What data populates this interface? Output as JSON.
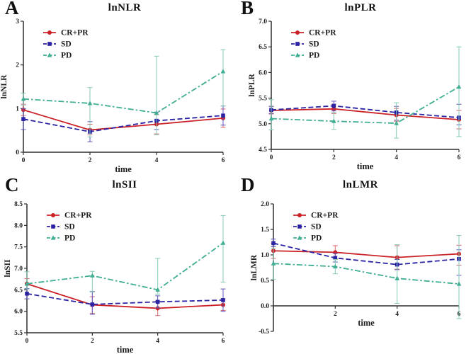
{
  "figure": {
    "background": "#ffffff",
    "axis_color": "#2e2e2e"
  },
  "chart_data": [
    {
      "panel_letter": "A",
      "type": "line",
      "title": "lnNLR",
      "xlabel": "time",
      "ylabel": "lnNLR",
      "xlim": [
        0,
        6
      ],
      "ylim": [
        0,
        3
      ],
      "xticks": [
        0,
        2,
        4,
        6
      ],
      "xtick_labels": [
        "0",
        "2",
        "4",
        "6"
      ],
      "yticks": [
        0,
        1,
        2,
        3
      ],
      "ytick_labels": [
        "0",
        "1",
        "2",
        "3"
      ],
      "xaxis_at": 0,
      "legend_position": "top-left",
      "grid": false,
      "x": [
        0,
        2,
        4,
        6
      ],
      "series": [
        {
          "name": "CR+PR",
          "color": "#cb2127",
          "error_color": "#d9666a",
          "line_style": "solid",
          "marker": "circle",
          "values": [
            0.97,
            0.51,
            0.64,
            0.78
          ],
          "err_lo": [
            0.84,
            0.4,
            0.42,
            0.57
          ],
          "err_hi": [
            1.1,
            0.64,
            0.86,
            0.99
          ]
        },
        {
          "name": "SD",
          "color": "#2a23a4",
          "error_color": "#5d57b8",
          "line_style": "dashed",
          "marker": "square",
          "values": [
            0.76,
            0.47,
            0.72,
            0.84
          ],
          "err_lo": [
            0.52,
            0.24,
            0.52,
            0.62
          ],
          "err_hi": [
            1.0,
            0.7,
            0.92,
            1.06
          ]
        },
        {
          "name": "PD",
          "color": "#3fae92",
          "error_color": "#85cab8",
          "line_style": "dashdot",
          "marker": "triangle",
          "values": [
            1.22,
            1.12,
            0.9,
            1.85
          ],
          "err_lo": [
            1.08,
            0.35,
            0.4,
            1.06
          ],
          "err_hi": [
            1.35,
            1.48,
            2.2,
            2.35
          ]
        }
      ]
    },
    {
      "panel_letter": "B",
      "type": "line",
      "title": "lnPLR",
      "xlabel": "time",
      "ylabel": "lnPLR",
      "xlim": [
        0,
        6
      ],
      "ylim": [
        4.5,
        7.0
      ],
      "xticks": [
        0,
        2,
        4,
        6
      ],
      "xtick_labels": [
        "0",
        "2",
        "4",
        "6"
      ],
      "yticks": [
        4.5,
        5.0,
        5.5,
        6.0,
        6.5,
        7.0
      ],
      "ytick_labels": [
        "4.5",
        "5.0",
        "5.5",
        "6.0",
        "6.5",
        "7.0"
      ],
      "xaxis_at": 4.5,
      "legend_position": "top-left",
      "grid": false,
      "x": [
        0,
        2,
        4,
        6
      ],
      "series": [
        {
          "name": "CR+PR",
          "color": "#cb2127",
          "error_color": "#d9666a",
          "line_style": "solid",
          "marker": "circle",
          "values": [
            5.26,
            5.29,
            5.17,
            5.08
          ],
          "err_lo": [
            5.19,
            5.2,
            5.05,
            4.9
          ],
          "err_hi": [
            5.34,
            5.38,
            5.3,
            5.26
          ]
        },
        {
          "name": "SD",
          "color": "#2a23a4",
          "error_color": "#5d57b8",
          "line_style": "dashed",
          "marker": "square",
          "values": [
            5.27,
            5.35,
            5.22,
            5.12
          ],
          "err_lo": [
            5.2,
            5.25,
            5.07,
            4.98
          ],
          "err_hi": [
            5.34,
            5.44,
            5.34,
            5.38
          ]
        },
        {
          "name": "PD",
          "color": "#3fae92",
          "error_color": "#85cab8",
          "line_style": "dashdot",
          "marker": "triangle",
          "values": [
            5.1,
            5.05,
            5.01,
            5.72
          ],
          "err_lo": [
            4.88,
            4.89,
            4.72,
            4.75
          ],
          "err_hi": [
            5.47,
            5.22,
            5.41,
            6.5
          ]
        }
      ]
    },
    {
      "panel_letter": "C",
      "type": "line",
      "title": "lnSII",
      "xlabel": "time",
      "ylabel": "lnSII",
      "xlim": [
        0,
        6
      ],
      "ylim": [
        5.5,
        8.5
      ],
      "xticks": [
        0,
        2,
        4,
        6
      ],
      "xtick_labels": [
        "0",
        "2",
        "4",
        "6"
      ],
      "yticks": [
        5.5,
        6.0,
        6.5,
        7.0,
        7.5,
        8.0,
        8.5
      ],
      "ytick_labels": [
        "5.5",
        "6.0",
        "6.5",
        "7.0",
        "7.5",
        "8.0",
        "8.5"
      ],
      "xaxis_at": 5.5,
      "legend_position": "top-left",
      "grid": false,
      "x": [
        0,
        2,
        4,
        6
      ],
      "series": [
        {
          "name": "CR+PR",
          "color": "#cb2127",
          "error_color": "#d9666a",
          "line_style": "solid",
          "marker": "circle",
          "values": [
            6.64,
            6.15,
            6.07,
            6.15
          ],
          "err_lo": [
            6.52,
            5.95,
            5.9,
            6.02
          ],
          "err_hi": [
            6.76,
            6.34,
            6.24,
            6.29
          ]
        },
        {
          "name": "SD",
          "color": "#2a23a4",
          "error_color": "#5d57b8",
          "line_style": "dashed",
          "marker": "square",
          "values": [
            6.41,
            6.16,
            6.22,
            6.26
          ],
          "err_lo": [
            6.29,
            5.93,
            6.08,
            6.0
          ],
          "err_hi": [
            6.53,
            6.46,
            6.36,
            6.52
          ]
        },
        {
          "name": "PD",
          "color": "#3fae92",
          "error_color": "#85cab8",
          "line_style": "dashdot",
          "marker": "triangle",
          "values": [
            6.64,
            6.83,
            6.5,
            7.59
          ],
          "err_lo": [
            6.52,
            6.45,
            6.4,
            6.68
          ],
          "err_hi": [
            6.92,
            6.93,
            7.23,
            8.23
          ]
        }
      ]
    },
    {
      "panel_letter": "D",
      "type": "line",
      "title": "lnLMR",
      "xlabel": "time",
      "ylabel": "lnLMR",
      "xlim": [
        0,
        6
      ],
      "ylim": [
        -0.5,
        2.0
      ],
      "xticks": [
        0,
        2,
        4,
        6
      ],
      "xtick_labels": [
        "",
        "2",
        "4",
        "6"
      ],
      "yticks": [
        -0.5,
        0.0,
        0.5,
        1.0,
        1.5,
        2.0
      ],
      "ytick_labels": [
        "-0.5",
        "0.0",
        "0.5",
        "1.0",
        "1.5",
        "2.0"
      ],
      "xaxis_at": 0.0,
      "legend_position": "top-left",
      "grid": false,
      "x": [
        0,
        2,
        4,
        6
      ],
      "series": [
        {
          "name": "CR+PR",
          "color": "#cb2127",
          "error_color": "#d9666a",
          "line_style": "solid",
          "marker": "circle",
          "values": [
            1.08,
            1.05,
            0.95,
            1.02
          ],
          "err_lo": [
            0.93,
            0.92,
            0.72,
            0.8
          ],
          "err_hi": [
            1.23,
            1.18,
            1.18,
            1.19
          ]
        },
        {
          "name": "SD",
          "color": "#2a23a4",
          "error_color": "#5d57b8",
          "line_style": "dashed",
          "marker": "square",
          "values": [
            1.23,
            0.94,
            0.81,
            0.92
          ],
          "err_lo": [
            1.16,
            0.86,
            0.71,
            0.6
          ],
          "err_hi": [
            1.31,
            1.03,
            0.91,
            1.1
          ]
        },
        {
          "name": "PD",
          "color": "#3fae92",
          "error_color": "#85cab8",
          "line_style": "dashdot",
          "marker": "triangle",
          "values": [
            0.83,
            0.77,
            0.54,
            0.43
          ],
          "err_lo": [
            0.52,
            0.63,
            0.05,
            -0.25
          ],
          "err_hi": [
            1.13,
            0.91,
            1.2,
            1.38
          ]
        }
      ]
    }
  ]
}
